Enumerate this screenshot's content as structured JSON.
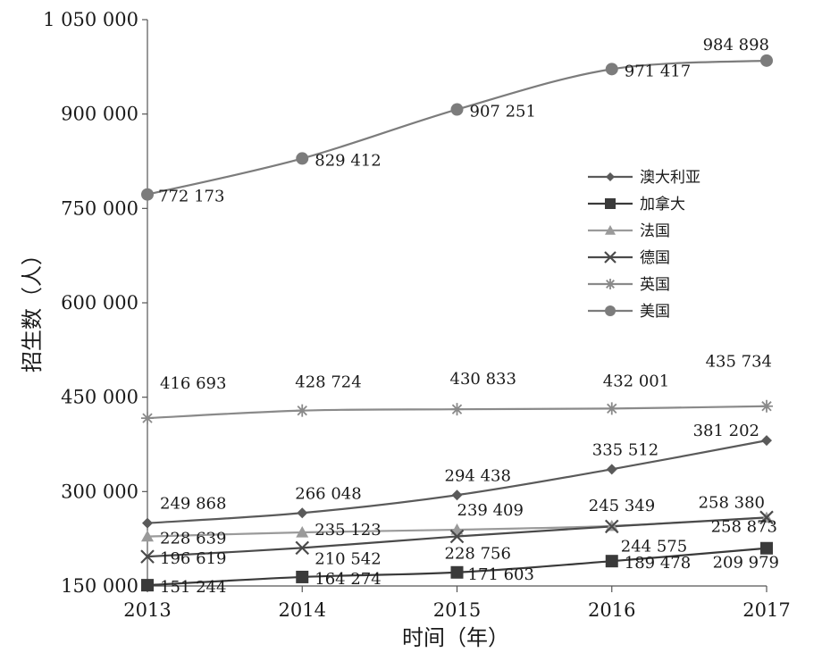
{
  "chart_data": {
    "type": "line",
    "title": "",
    "xlabel": "时间（年）",
    "ylabel": "招生数（人）",
    "x": [
      "2013",
      "2014",
      "2015",
      "2016",
      "2017"
    ],
    "ylim": [
      150000,
      1050000
    ],
    "yticks": [
      150000,
      300000,
      450000,
      600000,
      750000,
      900000,
      1050000
    ],
    "ytick_labels": [
      "150 000",
      "300 000",
      "450 000",
      "600 000",
      "750 000",
      "900 000",
      "1 050 000"
    ],
    "grid": false,
    "legend_position": "center-right",
    "series": [
      {
        "name": "澳大利亚",
        "marker": "diamond",
        "color": "#5a5a5a",
        "values": [
          249868,
          266048,
          294438,
          335512,
          381202
        ],
        "labels": [
          "249 868",
          "266 048",
          "294 438",
          "335 512",
          "381 202"
        ]
      },
      {
        "name": "加拿大",
        "marker": "square",
        "color": "#3a3a3a",
        "values": [
          151244,
          164274,
          171603,
          189478,
          209979
        ],
        "labels": [
          "151 244",
          "164 274",
          "171 603",
          "189 478",
          "209 979"
        ]
      },
      {
        "name": "法国",
        "marker": "triangle",
        "color": "#9a9a9a",
        "values": [
          228639,
          235123,
          239409,
          245349,
          258380
        ],
        "labels": [
          "228 639",
          "235 123",
          "239 409",
          "245 349",
          "258 380"
        ]
      },
      {
        "name": "德国",
        "marker": "x",
        "color": "#4a4a4a",
        "values": [
          196619,
          210542,
          228756,
          244575,
          258873
        ],
        "labels": [
          "196 619",
          "210 542",
          "228 756",
          "244 575",
          "258 873"
        ]
      },
      {
        "name": "英国",
        "marker": "star",
        "color": "#8a8a8a",
        "values": [
          416693,
          428724,
          430833,
          432001,
          435734
        ],
        "labels": [
          "416 693",
          "428 724",
          "430 833",
          "432 001",
          "435 734"
        ]
      },
      {
        "name": "美国",
        "marker": "circle",
        "color": "#7c7c7c",
        "values": [
          772173,
          829412,
          907251,
          971417,
          984898
        ],
        "labels": [
          "772 173",
          "829 412",
          "907 251",
          "971 417",
          "984 898"
        ]
      }
    ]
  }
}
